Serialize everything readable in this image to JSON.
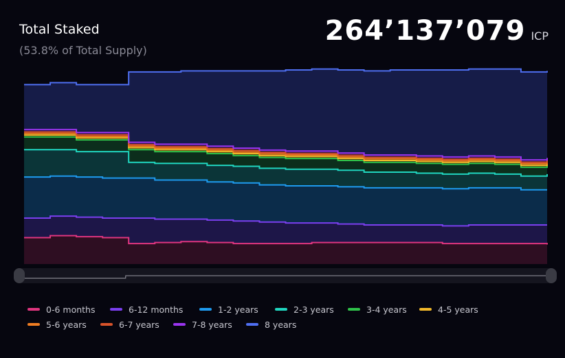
{
  "header": {
    "title": "Total Staked",
    "subtitle": "(53.8% of Total Supply)",
    "total_value": "264’137’079",
    "total_unit": "ICP"
  },
  "chart_data": {
    "type": "area",
    "stacked": true,
    "title": "Total Staked",
    "grid": false,
    "legend_position": "bottom",
    "x": [
      0,
      1,
      2,
      3,
      4,
      5,
      6,
      7,
      8,
      9,
      10,
      11,
      12,
      13,
      14,
      15,
      16,
      17,
      18,
      19,
      20
    ],
    "ylim": [
      0,
      100
    ],
    "series": [
      {
        "name": "0-6 months",
        "color": "#e0357f",
        "fill": "#2e0e22",
        "values": [
          13.5,
          14.5,
          14.0,
          13.5,
          10.5,
          11.0,
          11.5,
          11.0,
          10.5,
          10.5,
          10.5,
          11.0,
          11.0,
          11.0,
          11.0,
          11.0,
          10.5,
          10.5,
          10.5,
          10.5,
          10.0
        ]
      },
      {
        "name": "6-12 months",
        "color": "#7b3ff0",
        "fill": "#1d1648",
        "values": [
          10.0,
          10.0,
          10.0,
          10.0,
          13.0,
          12.0,
          11.5,
          11.5,
          11.5,
          11.0,
          10.5,
          10.0,
          9.5,
          9.0,
          9.0,
          9.0,
          9.0,
          9.5,
          9.5,
          9.5,
          10.0
        ]
      },
      {
        "name": "1-2 years",
        "color": "#1e9bf0",
        "fill": "#0b2c4a",
        "values": [
          21.0,
          20.5,
          20.5,
          20.5,
          20.5,
          20.0,
          20.0,
          19.5,
          19.5,
          19.0,
          19.0,
          19.0,
          19.0,
          19.0,
          19.0,
          19.0,
          19.0,
          19.0,
          19.0,
          18.0,
          18.0
        ]
      },
      {
        "name": "2-3 years",
        "color": "#20d6c0",
        "fill": "#0b3538",
        "values": [
          14.0,
          13.5,
          13.0,
          13.5,
          8.0,
          8.5,
          8.5,
          8.5,
          8.5,
          8.5,
          8.5,
          8.5,
          8.5,
          8.0,
          8.0,
          7.5,
          7.5,
          7.5,
          7.0,
          7.0,
          8.0
        ]
      },
      {
        "name": "3-4 years",
        "color": "#2fc24a",
        "fill": "#0c2e1c",
        "values": [
          6.5,
          6.5,
          6.0,
          6.0,
          6.5,
          6.0,
          6.0,
          6.0,
          5.5,
          5.5,
          5.5,
          5.5,
          5.0,
          5.0,
          5.0,
          5.0,
          5.0,
          5.0,
          5.0,
          4.5,
          4.5
        ]
      },
      {
        "name": "4-5 years",
        "color": "#f2b92a",
        "fill": "#3a2d10",
        "values": [
          1.0,
          1.0,
          1.0,
          1.0,
          1.0,
          1.0,
          1.0,
          1.0,
          1.0,
          1.0,
          1.0,
          1.0,
          1.0,
          1.0,
          1.0,
          1.0,
          1.0,
          1.0,
          1.0,
          1.0,
          1.0
        ]
      },
      {
        "name": "5-6 years",
        "color": "#f07d22",
        "fill": "#3a2210",
        "values": [
          0.8,
          0.8,
          0.8,
          0.8,
          0.8,
          0.8,
          0.8,
          0.8,
          0.8,
          0.8,
          0.8,
          0.8,
          0.8,
          0.8,
          0.8,
          0.8,
          0.8,
          0.8,
          0.8,
          0.8,
          0.8
        ]
      },
      {
        "name": "6-7 years",
        "color": "#d9532a",
        "fill": "#351810",
        "values": [
          0.8,
          0.8,
          0.8,
          0.8,
          0.8,
          0.8,
          0.8,
          0.8,
          0.8,
          0.8,
          0.8,
          0.8,
          0.8,
          0.8,
          0.8,
          0.8,
          0.8,
          0.8,
          0.8,
          0.8,
          0.8
        ]
      },
      {
        "name": "7-8 years",
        "color": "#9b35f0",
        "fill": "#25124a",
        "values": [
          1.2,
          1.2,
          1.2,
          1.2,
          1.2,
          1.2,
          1.2,
          1.2,
          1.2,
          1.2,
          1.2,
          1.2,
          1.2,
          1.2,
          1.2,
          1.2,
          1.2,
          1.2,
          1.2,
          1.2,
          1.2
        ]
      },
      {
        "name": "8 years",
        "color": "#4f6ff2",
        "fill": "#161c48",
        "values": [
          23.0,
          24.0,
          24.5,
          24.5,
          36.0,
          37.0,
          37.5,
          38.5,
          39.5,
          40.5,
          41.5,
          42.0,
          42.5,
          43.0,
          43.5,
          44.0,
          44.5,
          44.5,
          45.0,
          45.0,
          44.5
        ]
      }
    ]
  },
  "slider": {
    "trace": [
      0.55,
      0.55,
      0.55,
      0.55,
      1.0,
      1.0,
      1.0,
      1.0,
      1.0,
      1.0,
      1.0,
      1.0,
      1.0,
      1.0,
      1.0,
      1.0,
      1.0,
      1.0,
      1.0,
      1.0,
      1.0
    ]
  },
  "legend": {
    "rows": [
      [
        {
          "label": "0-6 months",
          "color": "#e0357f"
        },
        {
          "label": "6-12 months",
          "color": "#7b3ff0"
        },
        {
          "label": "1-2 years",
          "color": "#1e9bf0"
        },
        {
          "label": "2-3 years",
          "color": "#20d6c0"
        },
        {
          "label": "3-4 years",
          "color": "#2fc24a"
        },
        {
          "label": "4-5 years",
          "color": "#f2b92a"
        }
      ],
      [
        {
          "label": "5-6 years",
          "color": "#f07d22"
        },
        {
          "label": "6-7 years",
          "color": "#d9532a"
        },
        {
          "label": "7-8 years",
          "color": "#9b35f0"
        },
        {
          "label": "8 years",
          "color": "#4f6ff2"
        }
      ]
    ]
  }
}
